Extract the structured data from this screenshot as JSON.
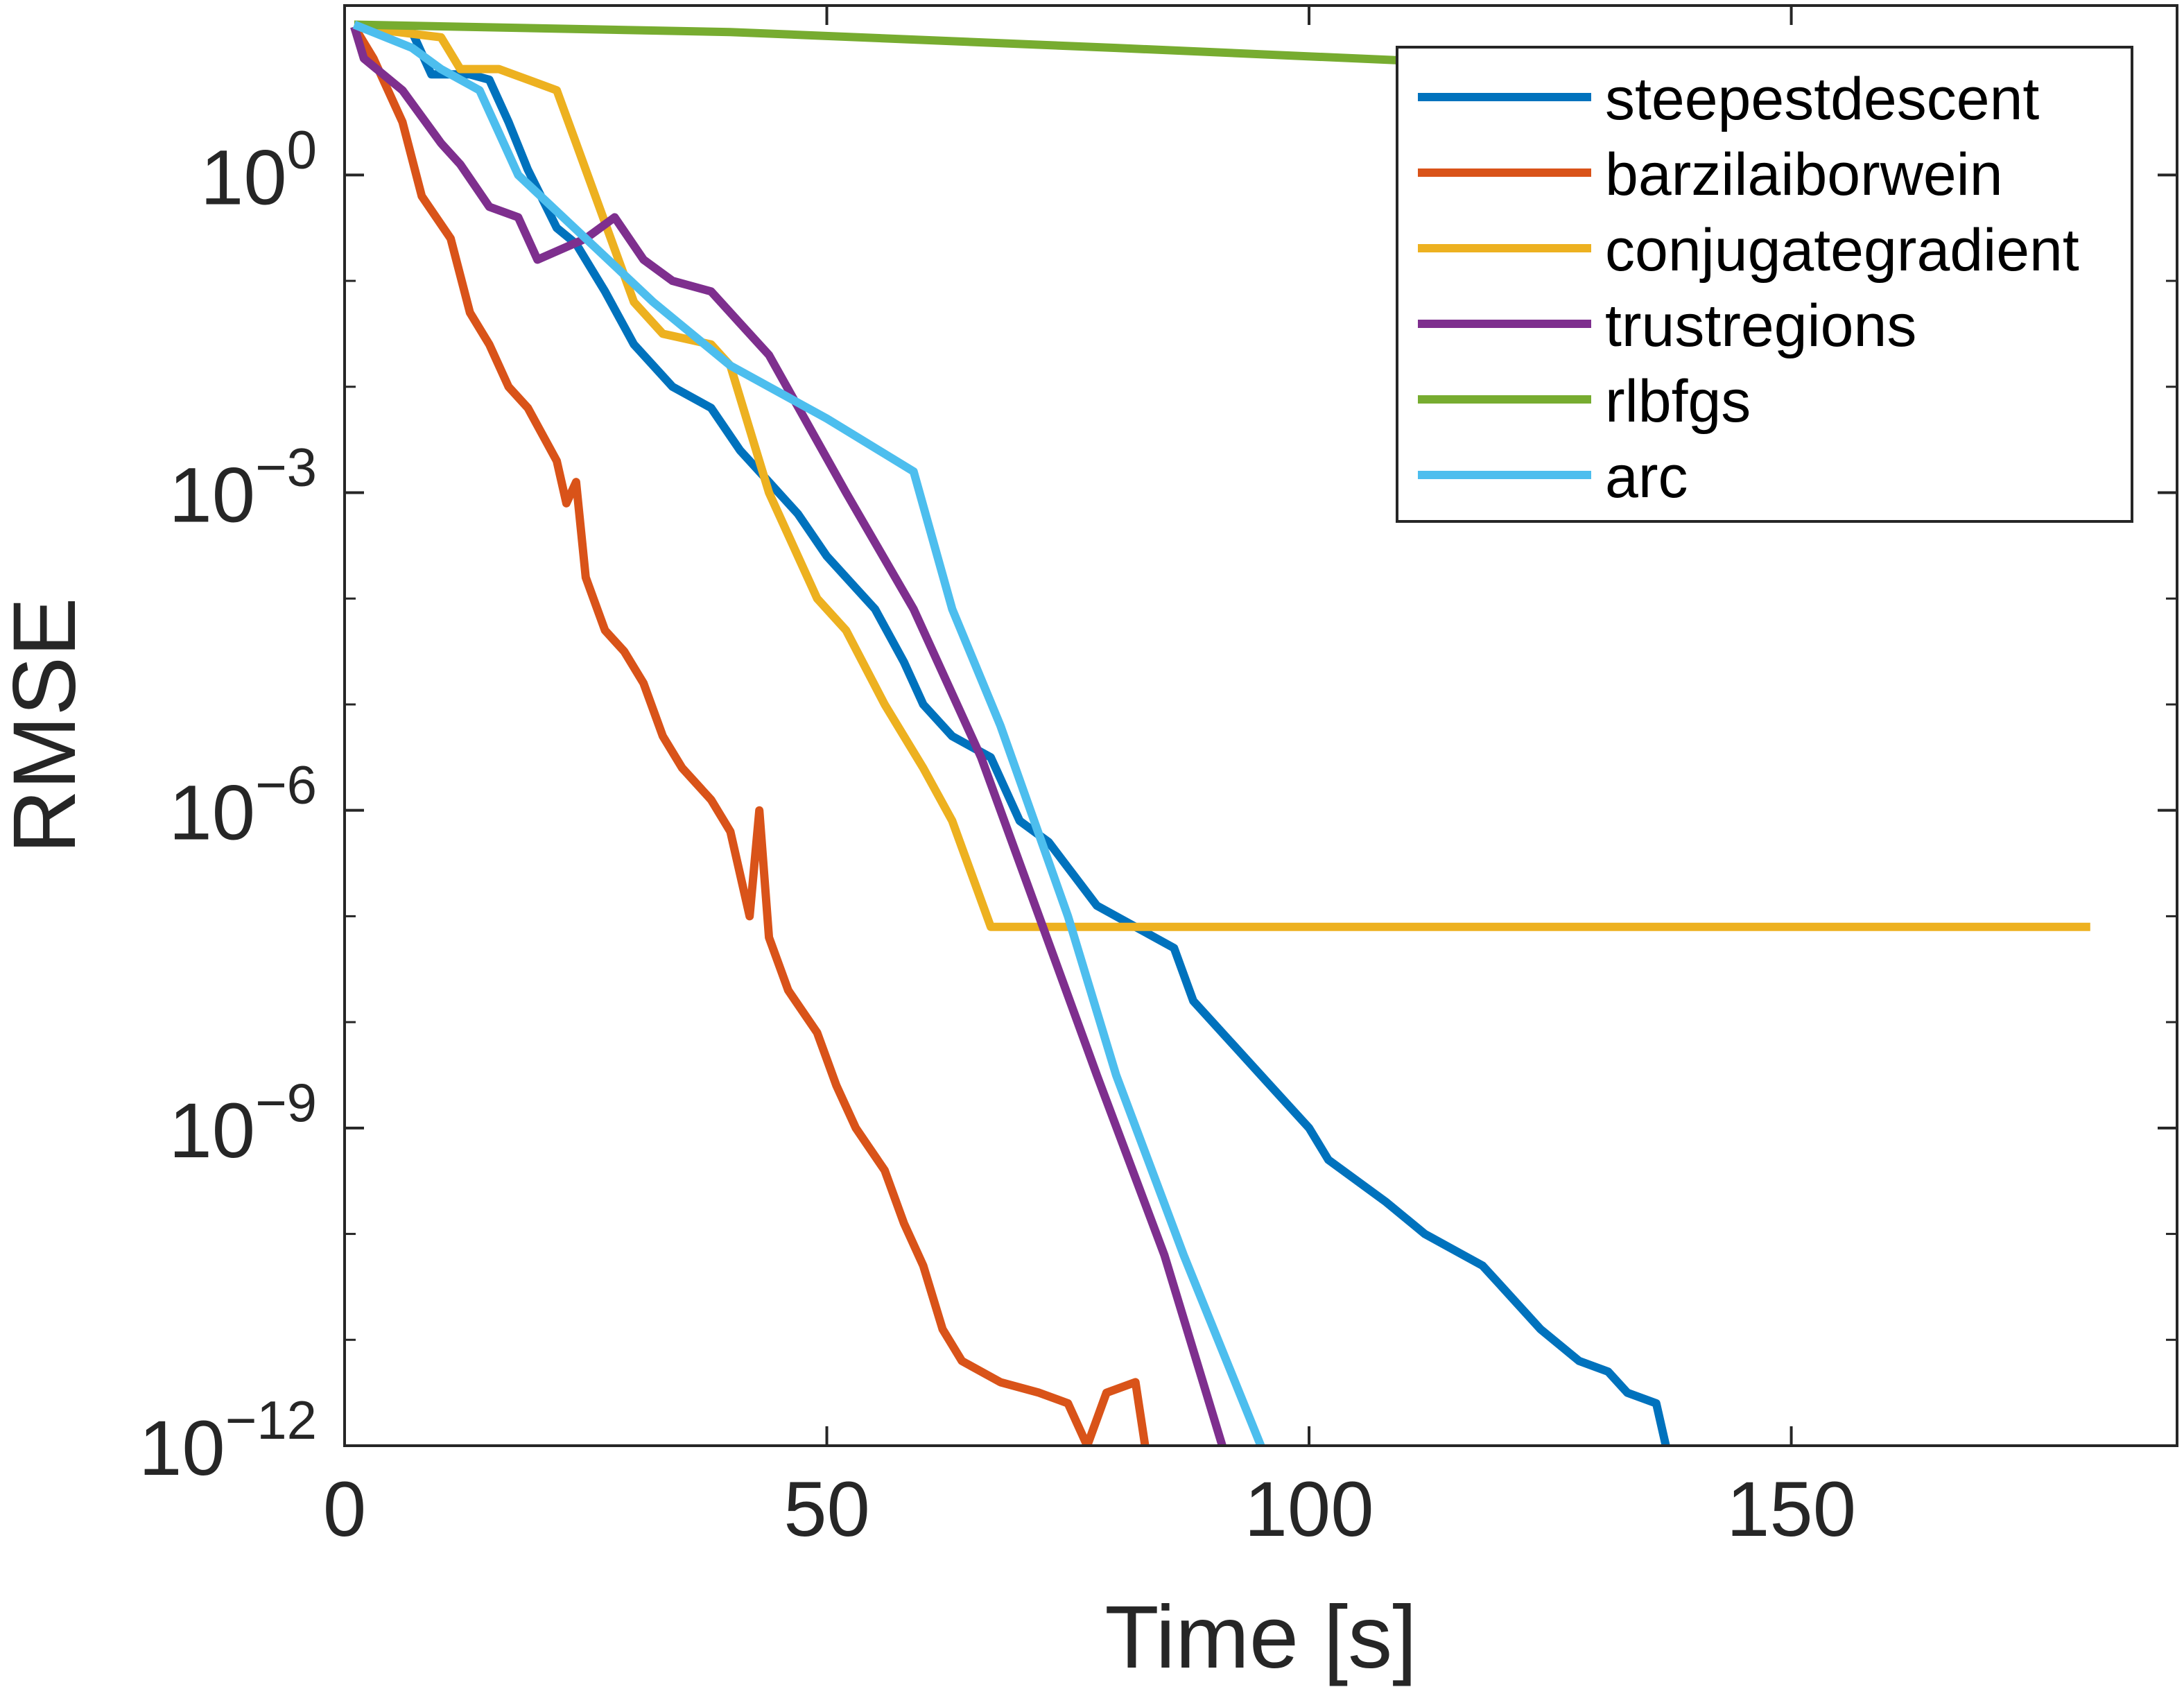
{
  "chart_data": {
    "type": "line",
    "title": "",
    "xlabel": "Time [s]",
    "ylabel": "RMSE",
    "yscale": "log",
    "xlim": [
      0,
      190
    ],
    "ylim_exponent": [
      -12,
      1.6
    ],
    "grid": false,
    "legend_position": "top-right",
    "x_ticks": [
      {
        "value": 0,
        "label": "0"
      },
      {
        "value": 50,
        "label": "50"
      },
      {
        "value": 100,
        "label": "100"
      },
      {
        "value": 150,
        "label": "150"
      }
    ],
    "y_ticks": [
      {
        "exp": 0,
        "base": "10",
        "sup": "0"
      },
      {
        "exp": -3,
        "base": "10",
        "sup": "−3"
      },
      {
        "exp": -6,
        "base": "10",
        "sup": "−6"
      },
      {
        "exp": -9,
        "base": "10",
        "sup": "−9"
      },
      {
        "exp": -12,
        "base": "10",
        "sup": "−12"
      }
    ],
    "y_minor_exps": [
      -11,
      -10,
      -8,
      -7,
      -5,
      -4,
      -2,
      -1
    ],
    "series": [
      {
        "name": "steepestdescent",
        "color": "#0072BD",
        "points_log10": [
          [
            1,
            1.4
          ],
          [
            7,
            1.35
          ],
          [
            9,
            0.95
          ],
          [
            13,
            0.95
          ],
          [
            15,
            0.9
          ],
          [
            17,
            0.5
          ],
          [
            19,
            0.05
          ],
          [
            22,
            -0.5
          ],
          [
            24,
            -0.65
          ],
          [
            27,
            -1.1
          ],
          [
            30,
            -1.6
          ],
          [
            34,
            -2.0
          ],
          [
            38,
            -2.2
          ],
          [
            41,
            -2.6
          ],
          [
            44,
            -2.9
          ],
          [
            47,
            -3.2
          ],
          [
            50,
            -3.6
          ],
          [
            53,
            -3.9
          ],
          [
            55,
            -4.1
          ],
          [
            58,
            -4.6
          ],
          [
            60,
            -5.0
          ],
          [
            63,
            -5.3
          ],
          [
            67,
            -5.5
          ],
          [
            70,
            -6.1
          ],
          [
            73,
            -6.3
          ],
          [
            78,
            -6.9
          ],
          [
            82,
            -7.1
          ],
          [
            86,
            -7.3
          ],
          [
            88,
            -7.8
          ],
          [
            92,
            -8.2
          ],
          [
            96,
            -8.6
          ],
          [
            100,
            -9.0
          ],
          [
            102,
            -9.3
          ],
          [
            108,
            -9.7
          ],
          [
            112,
            -10.0
          ],
          [
            116,
            -10.2
          ],
          [
            118,
            -10.3
          ],
          [
            120,
            -10.5
          ],
          [
            124,
            -10.9
          ],
          [
            128,
            -11.2
          ],
          [
            131,
            -11.3
          ],
          [
            133,
            -11.5
          ],
          [
            136,
            -11.6
          ],
          [
            137,
            -12.0
          ]
        ]
      },
      {
        "name": "barzilaiborwein",
        "color": "#D95319",
        "points_log10": [
          [
            1,
            1.4
          ],
          [
            3,
            1.1
          ],
          [
            6,
            0.5
          ],
          [
            8,
            -0.2
          ],
          [
            11,
            -0.6
          ],
          [
            13,
            -1.3
          ],
          [
            15,
            -1.6
          ],
          [
            17,
            -2.0
          ],
          [
            19,
            -2.2
          ],
          [
            22,
            -2.7
          ],
          [
            23,
            -3.1
          ],
          [
            24,
            -2.9
          ],
          [
            25,
            -3.8
          ],
          [
            27,
            -4.3
          ],
          [
            29,
            -4.5
          ],
          [
            31,
            -4.8
          ],
          [
            33,
            -5.3
          ],
          [
            35,
            -5.6
          ],
          [
            38,
            -5.9
          ],
          [
            40,
            -6.2
          ],
          [
            42,
            -7.0
          ],
          [
            43,
            -6.0
          ],
          [
            44,
            -7.2
          ],
          [
            46,
            -7.7
          ],
          [
            49,
            -8.1
          ],
          [
            51,
            -8.6
          ],
          [
            53,
            -9.0
          ],
          [
            56,
            -9.4
          ],
          [
            58,
            -9.9
          ],
          [
            60,
            -10.3
          ],
          [
            62,
            -10.9
          ],
          [
            64,
            -11.2
          ],
          [
            68,
            -11.4
          ],
          [
            72,
            -11.5
          ],
          [
            75,
            -11.6
          ],
          [
            77,
            -12.0
          ],
          [
            79,
            -11.5
          ],
          [
            82,
            -11.4
          ],
          [
            83,
            -12.0
          ]
        ]
      },
      {
        "name": "conjugategradient",
        "color": "#EDB120",
        "points_log10": [
          [
            1,
            1.4
          ],
          [
            10,
            1.3
          ],
          [
            12,
            1.0
          ],
          [
            16,
            1.0
          ],
          [
            22,
            0.8
          ],
          [
            24,
            0.3
          ],
          [
            26,
            -0.2
          ],
          [
            28,
            -0.7
          ],
          [
            30,
            -1.2
          ],
          [
            33,
            -1.5
          ],
          [
            38,
            -1.6
          ],
          [
            40,
            -1.8
          ],
          [
            42,
            -2.4
          ],
          [
            44,
            -3.0
          ],
          [
            47,
            -3.6
          ],
          [
            49,
            -4.0
          ],
          [
            52,
            -4.3
          ],
          [
            56,
            -5.0
          ],
          [
            60,
            -5.6
          ],
          [
            63,
            -6.1
          ],
          [
            65,
            -6.6
          ],
          [
            67,
            -7.1
          ],
          [
            181,
            -7.1
          ]
        ]
      },
      {
        "name": "trustregions",
        "color": "#7E2F8E",
        "points_log10": [
          [
            1,
            1.4
          ],
          [
            2,
            1.1
          ],
          [
            6,
            0.8
          ],
          [
            10,
            0.3
          ],
          [
            12,
            0.1
          ],
          [
            15,
            -0.3
          ],
          [
            18,
            -0.4
          ],
          [
            20,
            -0.8
          ],
          [
            25,
            -0.6
          ],
          [
            28,
            -0.4
          ],
          [
            31,
            -0.8
          ],
          [
            34,
            -1.0
          ],
          [
            38,
            -1.1
          ],
          [
            41,
            -1.4
          ],
          [
            44,
            -1.7
          ],
          [
            52,
            -3.0
          ],
          [
            59,
            -4.1
          ],
          [
            66,
            -5.5
          ],
          [
            72,
            -7.0
          ],
          [
            78,
            -8.5
          ],
          [
            85,
            -10.2
          ],
          [
            91,
            -12.0
          ]
        ]
      },
      {
        "name": "rlbfgs",
        "color": "#77AC30",
        "points_log10": [
          [
            1,
            1.42
          ],
          [
            40,
            1.35
          ],
          [
            80,
            1.2
          ],
          [
            110,
            1.08
          ]
        ]
      },
      {
        "name": "arc",
        "color": "#4DBEEE",
        "points_log10": [
          [
            1,
            1.42
          ],
          [
            7,
            1.2
          ],
          [
            10,
            1.0
          ],
          [
            14,
            0.8
          ],
          [
            18,
            0.0
          ],
          [
            25,
            -0.6
          ],
          [
            32,
            -1.2
          ],
          [
            40,
            -1.8
          ],
          [
            50,
            -2.3
          ],
          [
            59,
            -2.8
          ],
          [
            63,
            -4.1
          ],
          [
            68,
            -5.2
          ],
          [
            75,
            -7.0
          ],
          [
            80,
            -8.5
          ],
          [
            87,
            -10.2
          ],
          [
            95,
            -12.0
          ]
        ]
      }
    ]
  }
}
